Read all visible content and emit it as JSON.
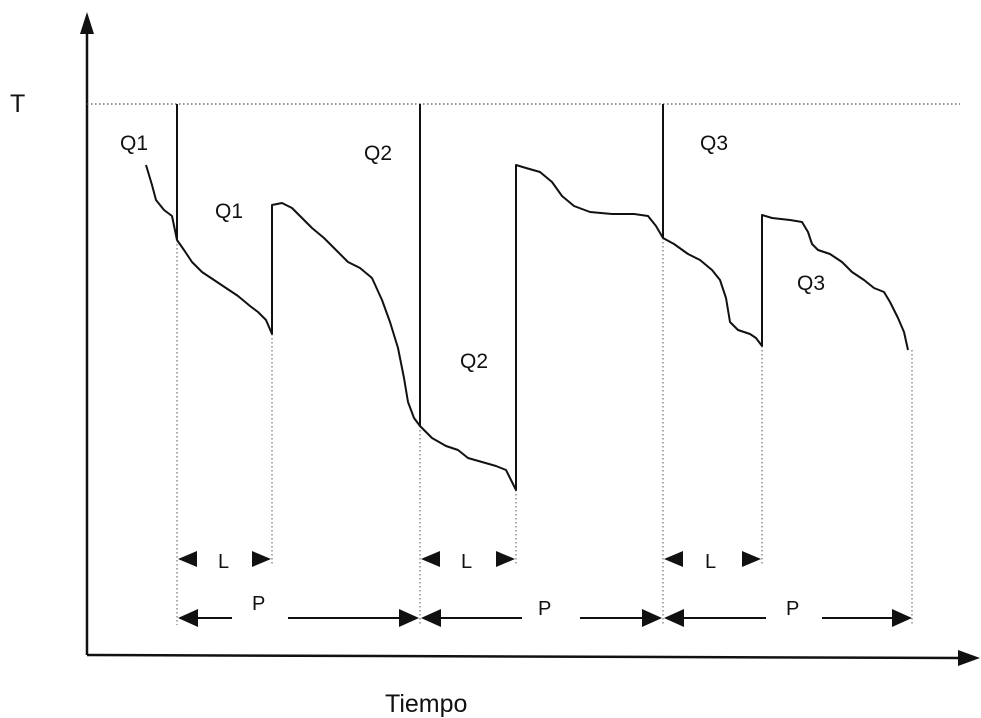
{
  "axes": {
    "y_label": "T",
    "x_label": "Tiempo"
  },
  "curve_labels": [
    {
      "id": "q1-top",
      "text": "Q1"
    },
    {
      "id": "q1-bottom",
      "text": "Q1"
    },
    {
      "id": "q2-top",
      "text": "Q2"
    },
    {
      "id": "q2-bottom",
      "text": "Q2"
    },
    {
      "id": "q3-top",
      "text": "Q3"
    },
    {
      "id": "q3-bottom",
      "text": "Q3"
    }
  ],
  "intervals": {
    "lead_time_label": "L",
    "period_label": "P"
  },
  "colors": {
    "ink": "#111111",
    "guide": "#555555"
  }
}
